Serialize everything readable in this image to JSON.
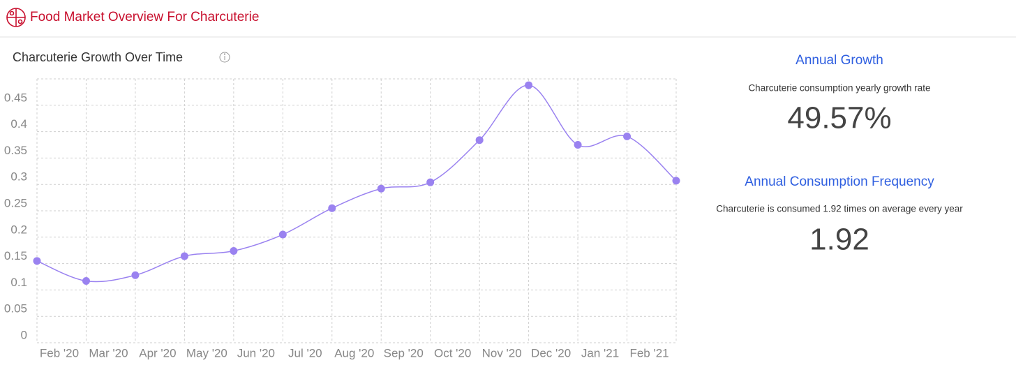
{
  "header": {
    "title": "Food Market Overview For Charcuterie"
  },
  "chart_data": {
    "type": "line",
    "title": "Charcuterie Growth Over Time",
    "categories": [
      "Feb '20",
      "Mar '20",
      "Apr '20",
      "May '20",
      "Jun '20",
      "Jul '20",
      "Aug '20",
      "Sep '20",
      "Oct '20",
      "Nov '20",
      "Dec '20",
      "Jan '21",
      "Feb '21",
      null
    ],
    "series": [
      {
        "color": "#9a82f0",
        "values": [
          0.155,
          0.117,
          0.128,
          0.164,
          0.174,
          0.205,
          0.255,
          0.292,
          0.304,
          0.384,
          0.488,
          0.375,
          0.391,
          0.307
        ]
      }
    ],
    "ylim": [
      0,
      0.5
    ],
    "yticks": [
      0,
      0.05,
      0.1,
      0.15,
      0.2,
      0.25,
      0.3,
      0.35,
      0.4,
      0.45
    ],
    "grid": true
  },
  "stats": [
    {
      "title": "Annual Growth",
      "subtitle": "Charcuterie consumption yearly growth rate",
      "value": "49.57%"
    },
    {
      "title": "Annual Consumption Frequency",
      "subtitle": "Charcuterie is consumed 1.92 times on average every year",
      "value": "1.92"
    }
  ]
}
